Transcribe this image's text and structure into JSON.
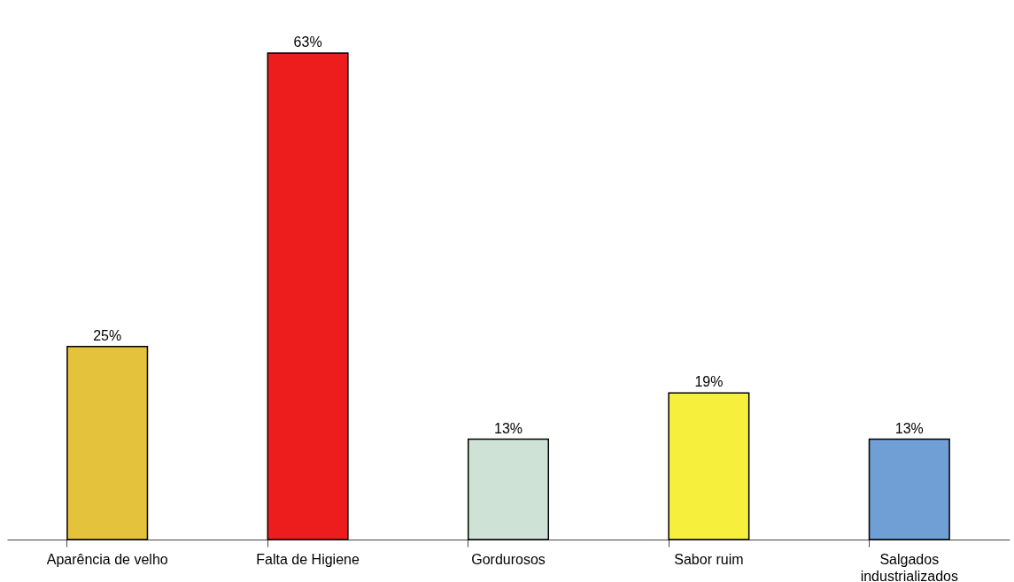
{
  "chart_data": {
    "type": "bar",
    "categories": [
      "Aparência de velho",
      "Falta de Higiene",
      "Gordurosos",
      "Sabor ruim",
      "Salgados industrializados"
    ],
    "values": [
      25,
      63,
      13,
      19,
      13
    ],
    "value_labels": [
      "25%",
      "63%",
      "13%",
      "19%",
      "13%"
    ],
    "colors": [
      "#e5c23c",
      "#ee1d1d",
      "#cfe2d6",
      "#f6ef3c",
      "#6f9fd5"
    ],
    "grid": false
  }
}
